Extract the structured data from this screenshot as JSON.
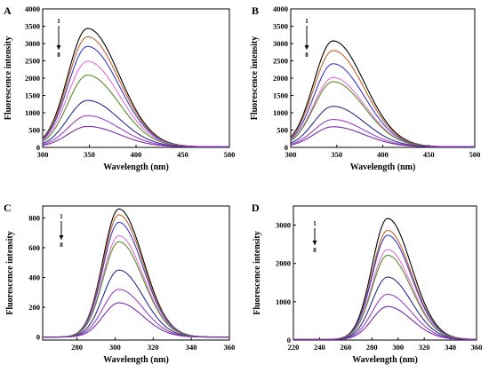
{
  "curve_colors": [
    "#000000",
    "#c0622a",
    "#3a3ac8",
    "#e070e0",
    "#5a8a2a",
    "#2a2a8a",
    "#9a40c8",
    "#7a2aa8"
  ],
  "chart_data": [
    {
      "type": "line",
      "panel": "A",
      "xlabel": "Wavelength (nm)",
      "ylabel": "Fluorescence intensity",
      "xlim": [
        300,
        500
      ],
      "ylim": [
        0,
        4000
      ],
      "xticks": [
        300,
        350,
        400,
        450,
        500
      ],
      "yticks": [
        0,
        500,
        1000,
        1500,
        2000,
        2500,
        3000,
        3500,
        4000
      ],
      "peak_x": 348,
      "arrow": {
        "top": "1",
        "bottom": "8"
      },
      "series": [
        {
          "peak": 3420,
          "color": "#000000"
        },
        {
          "peak": 3180,
          "color": "#c0622a"
        },
        {
          "peak": 2900,
          "color": "#3a3ac8"
        },
        {
          "peak": 2470,
          "color": "#e070e0"
        },
        {
          "peak": 2070,
          "color": "#5a8a2a"
        },
        {
          "peak": 1340,
          "color": "#2a2a8a"
        },
        {
          "peak": 900,
          "color": "#9a40c8"
        },
        {
          "peak": 590,
          "color": "#7a2aa8"
        }
      ]
    },
    {
      "type": "line",
      "panel": "B",
      "xlabel": "Wavelength (nm)",
      "ylabel": "Fluorescence intensity",
      "xlim": [
        300,
        500
      ],
      "ylim": [
        0,
        4000
      ],
      "xticks": [
        300,
        350,
        400,
        450,
        500
      ],
      "yticks": [
        0,
        500,
        1000,
        1500,
        2000,
        2500,
        3000,
        3500,
        4000
      ],
      "peak_x": 346,
      "arrow": {
        "top": "1",
        "bottom": "8"
      },
      "series": [
        {
          "peak": 3060,
          "color": "#000000"
        },
        {
          "peak": 2780,
          "color": "#c0622a"
        },
        {
          "peak": 2400,
          "color": "#3a3ac8"
        },
        {
          "peak": 2000,
          "color": "#e070e0"
        },
        {
          "peak": 1880,
          "color": "#5a8a2a"
        },
        {
          "peak": 1170,
          "color": "#2a2a8a"
        },
        {
          "peak": 790,
          "color": "#9a40c8"
        },
        {
          "peak": 580,
          "color": "#7a2aa8"
        }
      ]
    },
    {
      "type": "line",
      "panel": "C",
      "xlabel": "Wavelength (nm)",
      "ylabel": "Fluorescence intensity",
      "xlim": [
        262,
        360
      ],
      "ylim": [
        -20,
        880
      ],
      "xticks": [
        280,
        300,
        320,
        340,
        360
      ],
      "yticks": [
        0,
        200,
        400,
        600,
        800
      ],
      "peak_x": 302,
      "arrow": {
        "top": "1",
        "bottom": "8"
      },
      "series": [
        {
          "peak": 860,
          "color": "#000000"
        },
        {
          "peak": 820,
          "color": "#c0622a"
        },
        {
          "peak": 770,
          "color": "#3a3ac8"
        },
        {
          "peak": 680,
          "color": "#e070e0"
        },
        {
          "peak": 640,
          "color": "#5a8a2a"
        },
        {
          "peak": 450,
          "color": "#2a2a8a"
        },
        {
          "peak": 320,
          "color": "#9a40c8"
        },
        {
          "peak": 230,
          "color": "#7a2aa8"
        }
      ]
    },
    {
      "type": "line",
      "panel": "D",
      "xlabel": "Wavelength (nm)",
      "ylabel": "Fluorescence intensity",
      "xlim": [
        220,
        360
      ],
      "ylim": [
        0,
        3500
      ],
      "xticks": [
        220,
        240,
        260,
        280,
        300,
        320,
        340,
        360
      ],
      "yticks": [
        0,
        1000,
        2000,
        3000
      ],
      "peak_x": 292,
      "arrow": {
        "top": "1",
        "bottom": "8"
      },
      "series": [
        {
          "peak": 3160,
          "color": "#000000"
        },
        {
          "peak": 2850,
          "color": "#c0622a"
        },
        {
          "peak": 2720,
          "color": "#3a3ac8"
        },
        {
          "peak": 2350,
          "color": "#e070e0"
        },
        {
          "peak": 2200,
          "color": "#5a8a2a"
        },
        {
          "peak": 1630,
          "color": "#2a2a8a"
        },
        {
          "peak": 1180,
          "color": "#9a40c8"
        },
        {
          "peak": 860,
          "color": "#7a2aa8"
        }
      ]
    }
  ]
}
